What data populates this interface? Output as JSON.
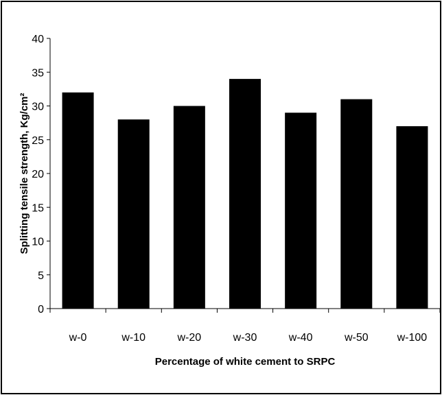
{
  "chart_data": {
    "type": "bar",
    "categories": [
      "w-0",
      "w-10",
      "w-20",
      "w-30",
      "w-40",
      "w-50",
      "w-100"
    ],
    "values": [
      32,
      28,
      30,
      34,
      29,
      31,
      27
    ],
    "xlabel": "Percentage of white cement to SRPC",
    "ylabel": "Splitting tensile strength, Kg/cm²",
    "ylim": [
      0,
      40
    ],
    "yticks": [
      0,
      5,
      10,
      15,
      20,
      25,
      30,
      35,
      40
    ],
    "bar_color": "#000000",
    "grid": false,
    "legend": "none"
  }
}
